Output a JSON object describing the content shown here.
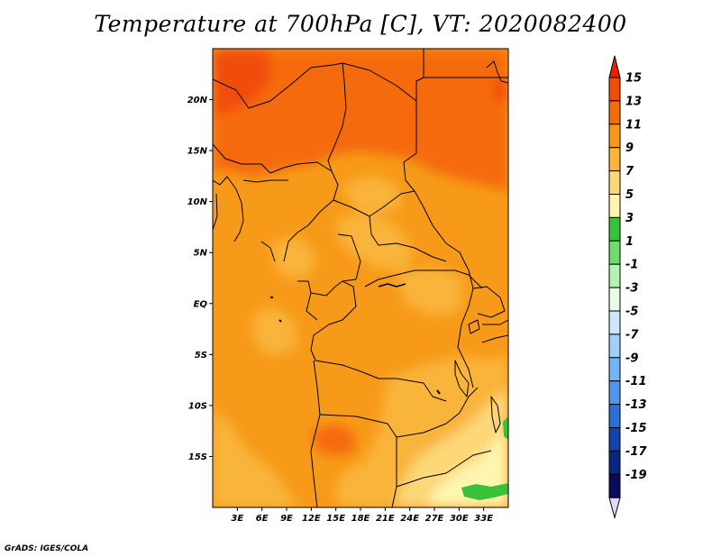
{
  "title": "Temperature at 700hPa [C], VT: 2020082400",
  "footer": "GrADS: IGES/COLA",
  "map": {
    "lon_range": [
      0,
      36
    ],
    "lat_range": [
      -20,
      25
    ],
    "lat_ticks": [
      {
        "value": 20,
        "label": "20N"
      },
      {
        "value": 15,
        "label": "15N"
      },
      {
        "value": 10,
        "label": "10N"
      },
      {
        "value": 5,
        "label": "5N"
      },
      {
        "value": 0,
        "label": "EQ"
      },
      {
        "value": -5,
        "label": "5S"
      },
      {
        "value": -10,
        "label": "10S"
      },
      {
        "value": -15,
        "label": "15S"
      }
    ],
    "lon_ticks": [
      {
        "value": 3,
        "label": "3E"
      },
      {
        "value": 6,
        "label": "6E"
      },
      {
        "value": 9,
        "label": "9E"
      },
      {
        "value": 12,
        "label": "12E"
      },
      {
        "value": 15,
        "label": "15E"
      },
      {
        "value": 18,
        "label": "18E"
      },
      {
        "value": 21,
        "label": "21E"
      },
      {
        "value": 24,
        "label": "24E"
      },
      {
        "value": 27,
        "label": "27E"
      },
      {
        "value": 30,
        "label": "30E"
      },
      {
        "value": 33,
        "label": "33E"
      }
    ]
  },
  "colorbar": {
    "labels": [
      "15",
      "13",
      "11",
      "9",
      "7",
      "5",
      "3",
      "1",
      "-1",
      "-3",
      "-5",
      "-7",
      "-9",
      "-11",
      "-13",
      "-15",
      "-17",
      "-19"
    ],
    "colors": [
      "#e62000",
      "#f04d0a",
      "#f56b0c",
      "#f79a19",
      "#f9b43a",
      "#fdd778",
      "#fff5ae",
      "#39c239",
      "#6fdc6f",
      "#b2f2b2",
      "#e8fbe8",
      "#cce6ff",
      "#9fceff",
      "#73b4f8",
      "#4f96ec",
      "#2b6fd8",
      "#1442b0",
      "#0a2580",
      "#0a0a60",
      "#dcdcff"
    ]
  }
}
